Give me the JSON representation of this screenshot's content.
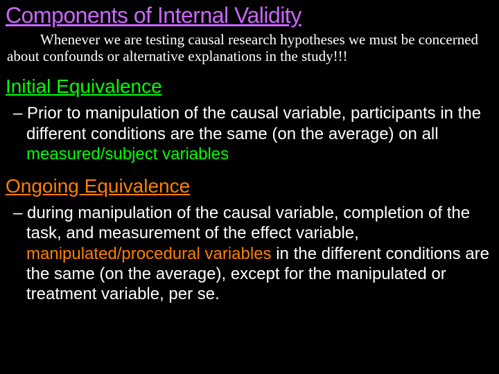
{
  "colors": {
    "background": "#000000",
    "title": "#cc66ff",
    "intro_text": "#ffffff",
    "heading_initial": "#00ff00",
    "heading_ongoing": "#ff8000",
    "body_text": "#ffffff",
    "highlight_green": "#00ff00",
    "highlight_orange": "#ff8000"
  },
  "typography": {
    "title_fontsize": 32,
    "intro_fontsize": 21,
    "heading_fontsize": 28,
    "body_fontsize": 24,
    "title_font": "Arial",
    "intro_font": "Times New Roman",
    "body_font": "Arial"
  },
  "title": "Components of Internal Validity",
  "intro": "Whenever we are testing causal research hypotheses we must be concerned about confounds or alternative explanations in the study!!!",
  "sections": [
    {
      "heading": "Initial Equivalence",
      "heading_color": "#00ff00",
      "bullet_prefix": "Prior to manipulation of the causal variable, participants in the different conditions are the same (on the average) on all ",
      "highlight": "measured/subject variables",
      "highlight_color": "#00ff00",
      "bullet_suffix": ""
    },
    {
      "heading": "Ongoing Equivalence",
      "heading_color": "#ff8000",
      "bullet_prefix": "during manipulation of the causal variable, completion of the task, and measurement of the effect variable, ",
      "highlight": "manipulated/procedural variables",
      "highlight_color": "#ff8000",
      "bullet_suffix": " in the different conditions are the same (on the average), except for the manipulated or treatment variable, per se."
    }
  ]
}
